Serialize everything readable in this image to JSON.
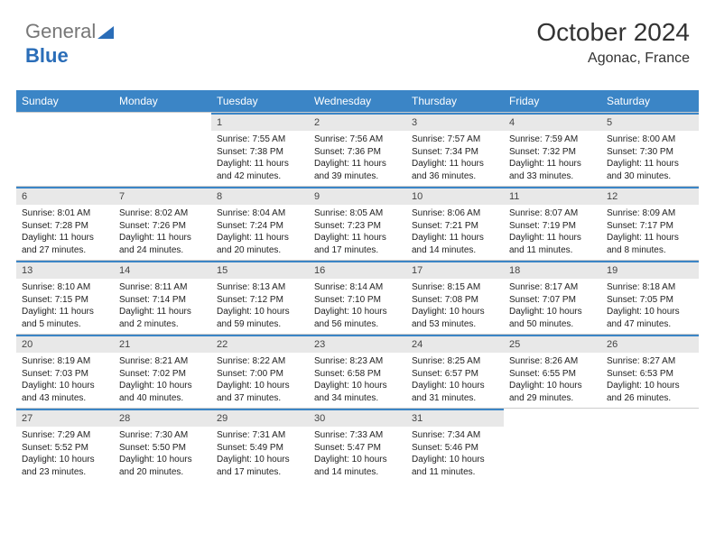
{
  "logo": {
    "part1": "General",
    "part2": "Blue"
  },
  "title": "October 2024",
  "location": "Agonac, France",
  "header_bg": "#3b85c6",
  "daynum_bg": "#e8e8e8",
  "accent": "#3b85c6",
  "daynames": [
    "Sunday",
    "Monday",
    "Tuesday",
    "Wednesday",
    "Thursday",
    "Friday",
    "Saturday"
  ],
  "weeks": [
    [
      {
        "n": "",
        "sr": "",
        "ss": "",
        "dl": ""
      },
      {
        "n": "",
        "sr": "",
        "ss": "",
        "dl": ""
      },
      {
        "n": "1",
        "sr": "Sunrise: 7:55 AM",
        "ss": "Sunset: 7:38 PM",
        "dl": "Daylight: 11 hours and 42 minutes."
      },
      {
        "n": "2",
        "sr": "Sunrise: 7:56 AM",
        "ss": "Sunset: 7:36 PM",
        "dl": "Daylight: 11 hours and 39 minutes."
      },
      {
        "n": "3",
        "sr": "Sunrise: 7:57 AM",
        "ss": "Sunset: 7:34 PM",
        "dl": "Daylight: 11 hours and 36 minutes."
      },
      {
        "n": "4",
        "sr": "Sunrise: 7:59 AM",
        "ss": "Sunset: 7:32 PM",
        "dl": "Daylight: 11 hours and 33 minutes."
      },
      {
        "n": "5",
        "sr": "Sunrise: 8:00 AM",
        "ss": "Sunset: 7:30 PM",
        "dl": "Daylight: 11 hours and 30 minutes."
      }
    ],
    [
      {
        "n": "6",
        "sr": "Sunrise: 8:01 AM",
        "ss": "Sunset: 7:28 PM",
        "dl": "Daylight: 11 hours and 27 minutes."
      },
      {
        "n": "7",
        "sr": "Sunrise: 8:02 AM",
        "ss": "Sunset: 7:26 PM",
        "dl": "Daylight: 11 hours and 24 minutes."
      },
      {
        "n": "8",
        "sr": "Sunrise: 8:04 AM",
        "ss": "Sunset: 7:24 PM",
        "dl": "Daylight: 11 hours and 20 minutes."
      },
      {
        "n": "9",
        "sr": "Sunrise: 8:05 AM",
        "ss": "Sunset: 7:23 PM",
        "dl": "Daylight: 11 hours and 17 minutes."
      },
      {
        "n": "10",
        "sr": "Sunrise: 8:06 AM",
        "ss": "Sunset: 7:21 PM",
        "dl": "Daylight: 11 hours and 14 minutes."
      },
      {
        "n": "11",
        "sr": "Sunrise: 8:07 AM",
        "ss": "Sunset: 7:19 PM",
        "dl": "Daylight: 11 hours and 11 minutes."
      },
      {
        "n": "12",
        "sr": "Sunrise: 8:09 AM",
        "ss": "Sunset: 7:17 PM",
        "dl": "Daylight: 11 hours and 8 minutes."
      }
    ],
    [
      {
        "n": "13",
        "sr": "Sunrise: 8:10 AM",
        "ss": "Sunset: 7:15 PM",
        "dl": "Daylight: 11 hours and 5 minutes."
      },
      {
        "n": "14",
        "sr": "Sunrise: 8:11 AM",
        "ss": "Sunset: 7:14 PM",
        "dl": "Daylight: 11 hours and 2 minutes."
      },
      {
        "n": "15",
        "sr": "Sunrise: 8:13 AM",
        "ss": "Sunset: 7:12 PM",
        "dl": "Daylight: 10 hours and 59 minutes."
      },
      {
        "n": "16",
        "sr": "Sunrise: 8:14 AM",
        "ss": "Sunset: 7:10 PM",
        "dl": "Daylight: 10 hours and 56 minutes."
      },
      {
        "n": "17",
        "sr": "Sunrise: 8:15 AM",
        "ss": "Sunset: 7:08 PM",
        "dl": "Daylight: 10 hours and 53 minutes."
      },
      {
        "n": "18",
        "sr": "Sunrise: 8:17 AM",
        "ss": "Sunset: 7:07 PM",
        "dl": "Daylight: 10 hours and 50 minutes."
      },
      {
        "n": "19",
        "sr": "Sunrise: 8:18 AM",
        "ss": "Sunset: 7:05 PM",
        "dl": "Daylight: 10 hours and 47 minutes."
      }
    ],
    [
      {
        "n": "20",
        "sr": "Sunrise: 8:19 AM",
        "ss": "Sunset: 7:03 PM",
        "dl": "Daylight: 10 hours and 43 minutes."
      },
      {
        "n": "21",
        "sr": "Sunrise: 8:21 AM",
        "ss": "Sunset: 7:02 PM",
        "dl": "Daylight: 10 hours and 40 minutes."
      },
      {
        "n": "22",
        "sr": "Sunrise: 8:22 AM",
        "ss": "Sunset: 7:00 PM",
        "dl": "Daylight: 10 hours and 37 minutes."
      },
      {
        "n": "23",
        "sr": "Sunrise: 8:23 AM",
        "ss": "Sunset: 6:58 PM",
        "dl": "Daylight: 10 hours and 34 minutes."
      },
      {
        "n": "24",
        "sr": "Sunrise: 8:25 AM",
        "ss": "Sunset: 6:57 PM",
        "dl": "Daylight: 10 hours and 31 minutes."
      },
      {
        "n": "25",
        "sr": "Sunrise: 8:26 AM",
        "ss": "Sunset: 6:55 PM",
        "dl": "Daylight: 10 hours and 29 minutes."
      },
      {
        "n": "26",
        "sr": "Sunrise: 8:27 AM",
        "ss": "Sunset: 6:53 PM",
        "dl": "Daylight: 10 hours and 26 minutes."
      }
    ],
    [
      {
        "n": "27",
        "sr": "Sunrise: 7:29 AM",
        "ss": "Sunset: 5:52 PM",
        "dl": "Daylight: 10 hours and 23 minutes."
      },
      {
        "n": "28",
        "sr": "Sunrise: 7:30 AM",
        "ss": "Sunset: 5:50 PM",
        "dl": "Daylight: 10 hours and 20 minutes."
      },
      {
        "n": "29",
        "sr": "Sunrise: 7:31 AM",
        "ss": "Sunset: 5:49 PM",
        "dl": "Daylight: 10 hours and 17 minutes."
      },
      {
        "n": "30",
        "sr": "Sunrise: 7:33 AM",
        "ss": "Sunset: 5:47 PM",
        "dl": "Daylight: 10 hours and 14 minutes."
      },
      {
        "n": "31",
        "sr": "Sunrise: 7:34 AM",
        "ss": "Sunset: 5:46 PM",
        "dl": "Daylight: 10 hours and 11 minutes."
      },
      {
        "n": "",
        "sr": "",
        "ss": "",
        "dl": ""
      },
      {
        "n": "",
        "sr": "",
        "ss": "",
        "dl": ""
      }
    ]
  ]
}
